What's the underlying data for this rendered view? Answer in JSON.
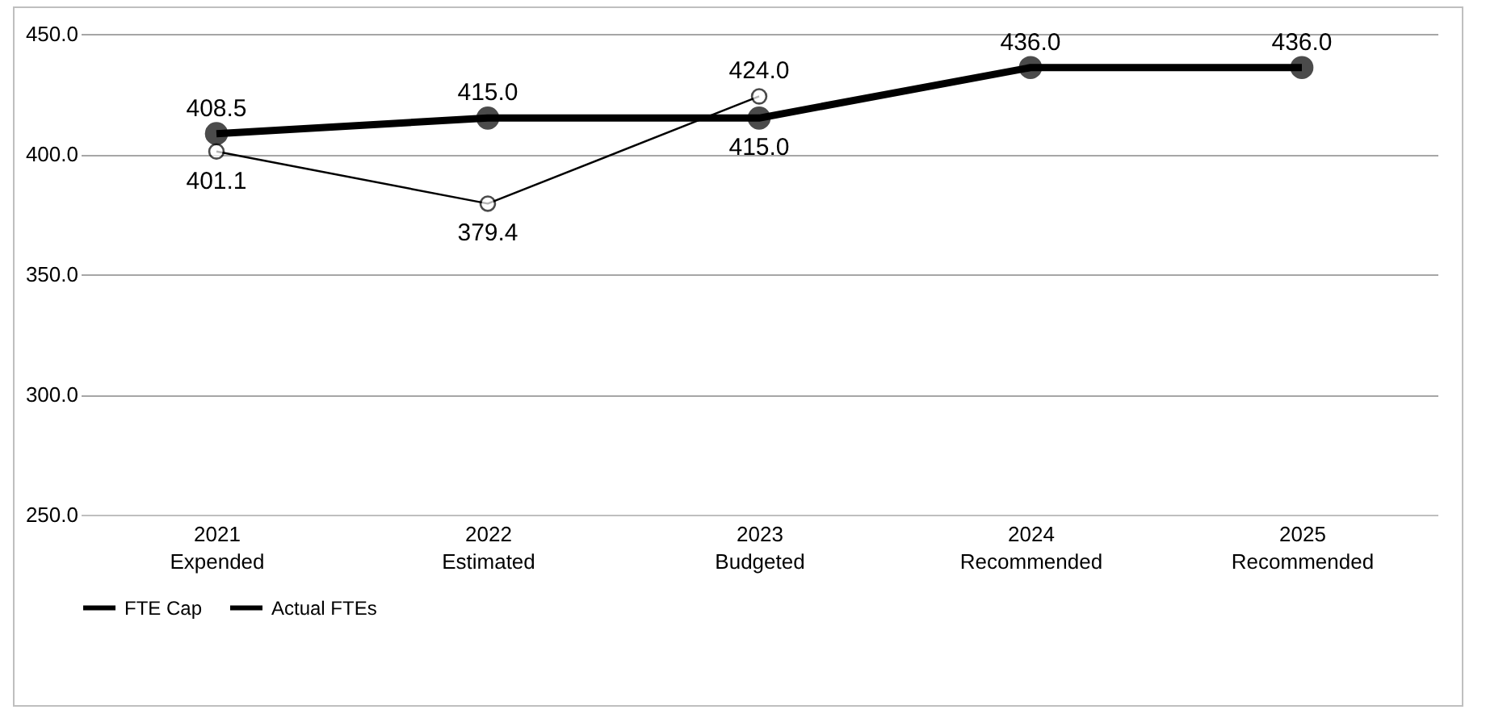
{
  "chart_data": {
    "type": "line",
    "categories": [
      "2021\nExpended",
      "2022\nEstimated",
      "2023\nBudgeted",
      "2024\nRecommended",
      "2025\nRecommended"
    ],
    "series": [
      {
        "name": "FTE Cap",
        "color": "#000000",
        "values": [
          408.5,
          415,
          415,
          436,
          436
        ],
        "value_labels": [
          "408.5",
          "415.0",
          "415.0",
          "436.0",
          "436.0"
        ]
      },
      {
        "name": "Actual FTEs",
        "color": "#000000",
        "values": [
          401.1,
          379.4,
          424,
          null,
          null
        ],
        "value_labels": [
          "401.1",
          "379.4",
          "424.0",
          null,
          null
        ]
      }
    ],
    "ylim": [
      250,
      450
    ],
    "yticks": [
      {
        "value": 250,
        "label": "250.0"
      },
      {
        "value": 300,
        "label": "300.0"
      },
      {
        "value": 350,
        "label": "350.0"
      },
      {
        "value": 400,
        "label": "400.0"
      },
      {
        "value": 450,
        "label": "450.0"
      }
    ],
    "grid": "y",
    "legend": "bottom",
    "marker": "circle"
  }
}
